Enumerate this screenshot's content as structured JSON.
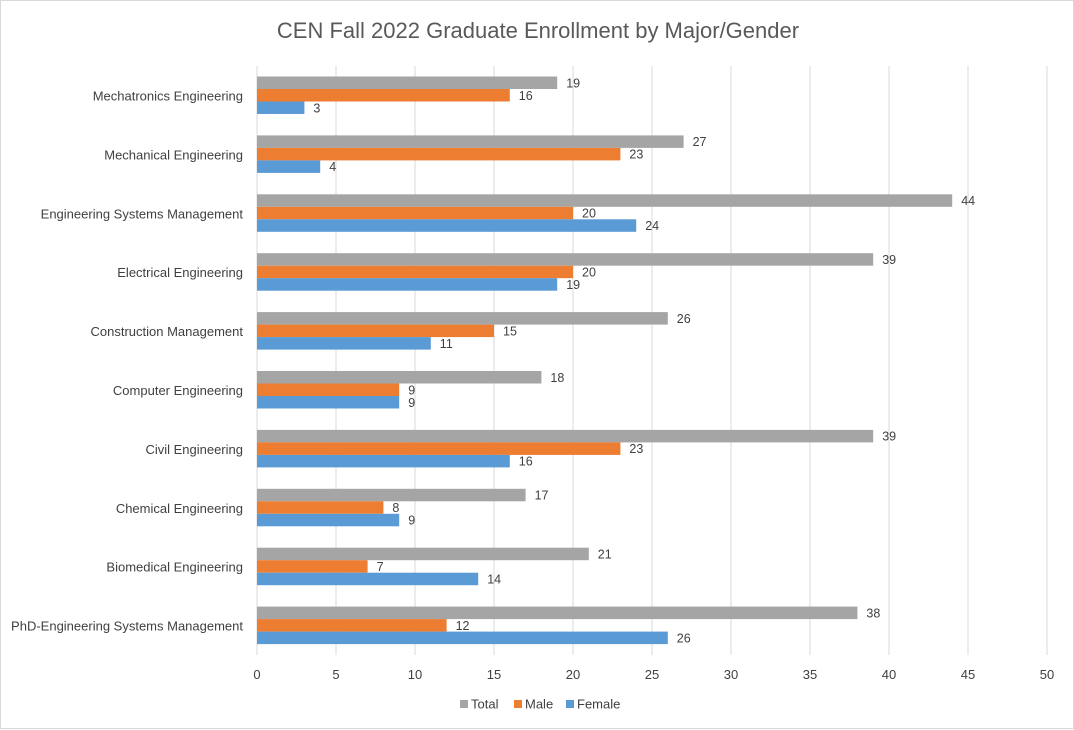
{
  "chart_data": {
    "type": "bar",
    "orientation": "horizontal",
    "title": "CEN Fall 2022 Graduate Enrollment by Major/Gender",
    "categories": [
      "Mechatronics Engineering",
      "Mechanical Engineering",
      "Engineering Systems Management",
      "Electrical Engineering",
      "Construction Management",
      "Computer Engineering",
      "Civil Engineering",
      "Chemical Engineering",
      "Biomedical Engineering",
      "PhD-Engineering Systems Management"
    ],
    "series": [
      {
        "name": "Total",
        "color": "#a5a5a5",
        "values": [
          19,
          27,
          44,
          39,
          26,
          18,
          39,
          17,
          21,
          38
        ]
      },
      {
        "name": "Male",
        "color": "#ed7d31",
        "values": [
          16,
          23,
          20,
          20,
          15,
          9,
          23,
          8,
          7,
          12
        ]
      },
      {
        "name": "Female",
        "color": "#5b9bd5",
        "values": [
          3,
          4,
          24,
          19,
          11,
          9,
          16,
          9,
          14,
          26
        ]
      }
    ],
    "xlim": [
      0,
      50
    ],
    "xticks": [
      0,
      5,
      10,
      15,
      20,
      25,
      30,
      35,
      40,
      45,
      50
    ],
    "grid": true,
    "data_labels": true,
    "legend_position": "bottom"
  },
  "colors": {
    "grid": "#d9d9d9",
    "text": "#404040",
    "title": "#595959"
  }
}
